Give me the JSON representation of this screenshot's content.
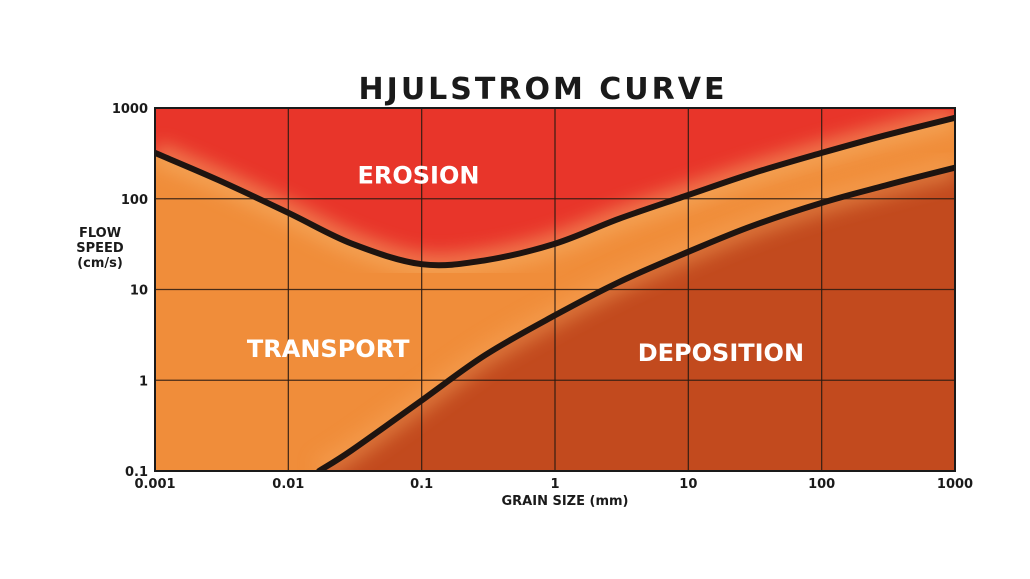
{
  "chart_data": {
    "type": "area",
    "title": "HJULSTROM CURVE",
    "xlabel": "GRAIN SIZE (mm)",
    "ylabel_lines": [
      "FLOW",
      "SPEED",
      "(cm/s)"
    ],
    "x_scale": "log",
    "y_scale": "log",
    "xlim": [
      0.001,
      1000
    ],
    "ylim": [
      0.1,
      1000
    ],
    "x_ticks": [
      "0.001",
      "0.01",
      "0.1",
      "1",
      "10",
      "100",
      "1000"
    ],
    "y_ticks": [
      "0.1",
      "1",
      "10",
      "100",
      "1000"
    ],
    "grid": true,
    "regions": [
      {
        "label": "EROSION",
        "color": "#e8352a"
      },
      {
        "label": "TRANSPORT",
        "color": "#f08d3a"
      },
      {
        "label": "DEPOSITION",
        "color": "#c24a1e"
      }
    ],
    "series": [
      {
        "x": [
          0.001,
          0.003,
          0.01,
          0.03,
          0.1,
          0.3,
          1,
          3,
          10,
          30,
          100,
          300,
          1000
        ],
        "values": [
          320,
          160,
          70,
          32,
          19,
          21,
          32,
          60,
          110,
          190,
          320,
          500,
          780
        ]
      },
      {
        "x": [
          0.017,
          0.03,
          0.1,
          0.3,
          1,
          3,
          10,
          30,
          100,
          300,
          1000
        ],
        "values": [
          0.1,
          0.17,
          0.6,
          1.9,
          5.2,
          12,
          26,
          50,
          90,
          140,
          220
        ]
      }
    ]
  }
}
